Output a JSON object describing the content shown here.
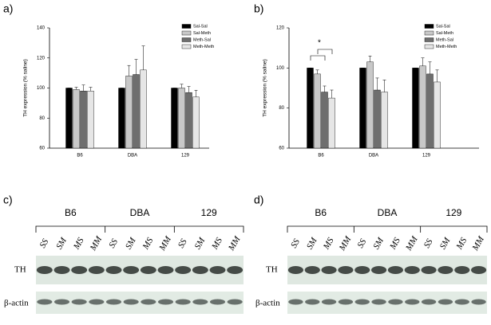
{
  "chart_data": [
    {
      "type": "bar",
      "panel_label": "a)",
      "ylabel": "TH expression (% saline)",
      "categories": [
        "B6",
        "DBA",
        "129"
      ],
      "series": [
        {
          "name": "Sal-Sal",
          "color": "#000000",
          "values": [
            100,
            100,
            100
          ],
          "errors": [
            0,
            0,
            0
          ]
        },
        {
          "name": "Sal-Meth",
          "color": "#c8c8c8",
          "values": [
            99,
            108,
            100
          ],
          "errors": [
            1.5,
            7,
            2.5
          ]
        },
        {
          "name": "Meth-Sal",
          "color": "#6e6e6e",
          "values": [
            98,
            109,
            97
          ],
          "errors": [
            4,
            10,
            4
          ]
        },
        {
          "name": "Meth-Meth",
          "color": "#e6e6e6",
          "values": [
            98,
            112,
            94
          ],
          "errors": [
            2.5,
            16,
            4.5
          ]
        }
      ],
      "ylim": [
        60,
        140
      ],
      "yticks": [
        60,
        80,
        100,
        120,
        140
      ],
      "legend": "upper right"
    },
    {
      "type": "bar",
      "panel_label": "b)",
      "ylabel": "TH expression (% saline)",
      "categories": [
        "B6",
        "DBA",
        "129"
      ],
      "series": [
        {
          "name": "Sal-Sal",
          "color": "#000000",
          "values": [
            100,
            100,
            100
          ],
          "errors": [
            0,
            0,
            0
          ]
        },
        {
          "name": "Sal-Meth",
          "color": "#c8c8c8",
          "values": [
            97,
            103,
            101
          ],
          "errors": [
            2,
            3,
            4
          ]
        },
        {
          "name": "Meth-Sal",
          "color": "#6e6e6e",
          "values": [
            88,
            89,
            97
          ],
          "errors": [
            3,
            6,
            6
          ]
        },
        {
          "name": "Meth-Meth",
          "color": "#e6e6e6",
          "values": [
            85,
            88,
            93
          ],
          "errors": [
            4,
            6,
            6
          ]
        }
      ],
      "ylim": [
        60,
        120
      ],
      "yticks": [
        60,
        80,
        100,
        120
      ],
      "legend": "upper right",
      "annotation": "*"
    }
  ],
  "blots": [
    {
      "panel_label": "c)",
      "groups": [
        "B6",
        "DBA",
        "129"
      ],
      "lanes": [
        "SS",
        "SM",
        "MS",
        "MM",
        "SS",
        "SM",
        "MS",
        "MM",
        "SS",
        "SM",
        "MS",
        "MM"
      ],
      "rows": [
        "TH",
        "β-actin"
      ]
    },
    {
      "panel_label": "d)",
      "groups": [
        "B6",
        "DBA",
        "129"
      ],
      "lanes": [
        "SS",
        "SM",
        "MS",
        "MM",
        "SS",
        "SM",
        "MS",
        "MM",
        "SS",
        "SM",
        "MS",
        "MM"
      ],
      "rows": [
        "TH",
        "β-actin"
      ]
    }
  ]
}
